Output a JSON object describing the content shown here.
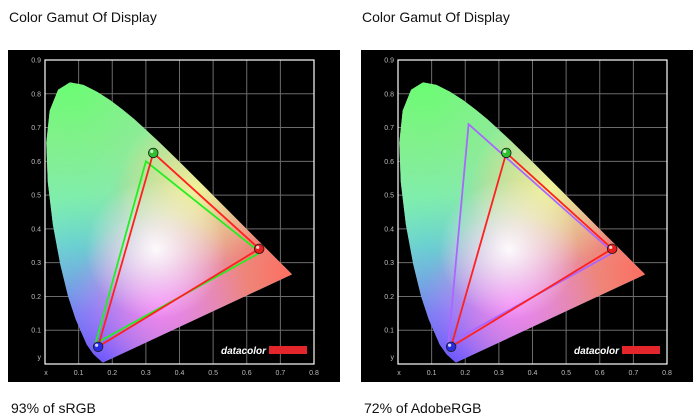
{
  "panels": [
    {
      "title": "Color Gamut Of Display",
      "caption": "93% of sRGB"
    },
    {
      "title": "Color Gamut Of Display",
      "caption": "72% of AdobeRGB"
    }
  ],
  "brand_logo_text": "datacolor",
  "colors": {
    "measured_gamut": "#ff2020",
    "srgb_reference": "#22ee22",
    "adobergb_reference": "#aa66ff",
    "logo_bar": "#e2262c",
    "plot_background": "#000000"
  },
  "chart_data": [
    {
      "type": "scatter",
      "title": "Color Gamut Of Display",
      "xlabel": "x",
      "ylabel": "y",
      "xlim": [
        0,
        0.8
      ],
      "ylim": [
        0,
        0.9
      ],
      "grid": true,
      "x_ticks": [
        "0.1",
        "0.2",
        "0.3",
        "0.4",
        "0.5",
        "0.6",
        "0.7",
        "0.8"
      ],
      "y_ticks": [
        "0.1",
        "0.2",
        "0.3",
        "0.4",
        "0.5",
        "0.6",
        "0.7",
        "0.8",
        "0.9"
      ],
      "series": [
        {
          "points": [
            [
              0.64,
              0.33
            ],
            [
              0.3,
              0.6
            ],
            [
              0.15,
              0.06
            ]
          ]
        },
        {
          "points": [
            [
              0.637,
              0.341
            ],
            [
              0.322,
              0.625
            ],
            [
              0.158,
              0.051
            ]
          ]
        }
      ]
    },
    {
      "type": "scatter",
      "title": "Color Gamut Of Display",
      "xlabel": "x",
      "ylabel": "y",
      "xlim": [
        0,
        0.8
      ],
      "ylim": [
        0,
        0.9
      ],
      "grid": true,
      "x_ticks": [
        "0.1",
        "0.2",
        "0.3",
        "0.4",
        "0.5",
        "0.6",
        "0.7",
        "0.8"
      ],
      "y_ticks": [
        "0.1",
        "0.2",
        "0.3",
        "0.4",
        "0.5",
        "0.6",
        "0.7",
        "0.8",
        "0.9"
      ],
      "series": [
        {
          "points": [
            [
              0.64,
              0.33
            ],
            [
              0.21,
              0.71
            ],
            [
              0.15,
              0.06
            ]
          ]
        },
        {
          "points": [
            [
              0.637,
              0.341
            ],
            [
              0.322,
              0.625
            ],
            [
              0.158,
              0.051
            ]
          ]
        }
      ]
    }
  ]
}
